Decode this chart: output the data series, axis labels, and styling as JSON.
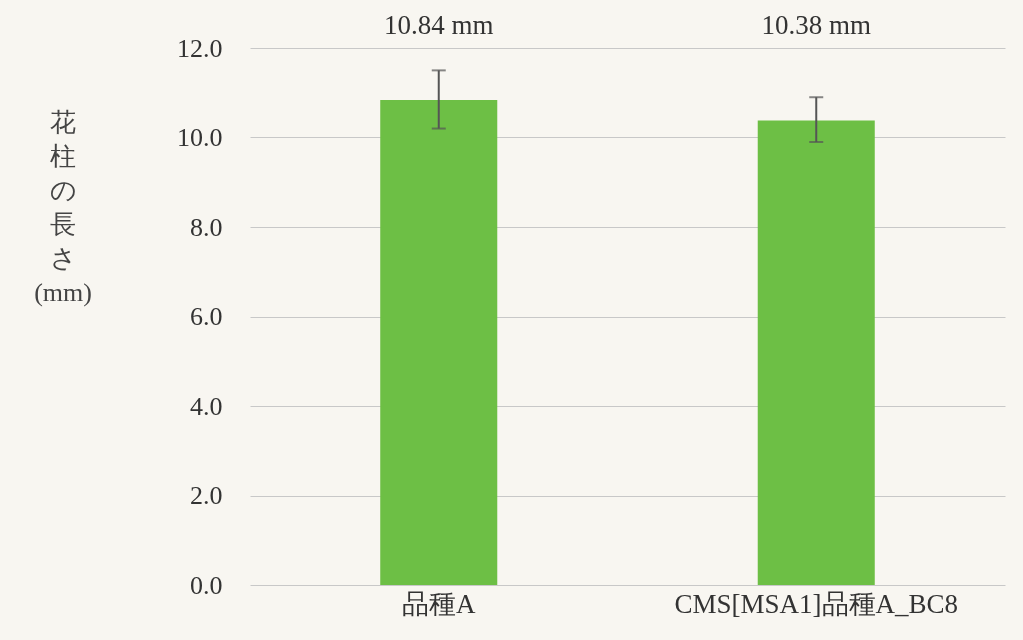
{
  "chart_data": {
    "type": "bar",
    "ylabel": "花柱の長さ (mm)",
    "categories": [
      "品種A",
      "CMS[MSA1]品種A_BC8"
    ],
    "values": [
      10.84,
      10.38
    ],
    "color": "#6dbf45",
    "errors": [
      [
        10.2,
        11.5
      ],
      [
        9.9,
        10.9
      ]
    ],
    "value_labels": [
      "10.84 mm",
      "10.38 mm"
    ],
    "ylim": [
      0,
      12
    ],
    "yticks": [
      {
        "value": 0,
        "label": "0.0"
      },
      {
        "value": 2,
        "label": "2.0"
      },
      {
        "value": 4,
        "label": "4.0"
      },
      {
        "value": 6,
        "label": "6.0"
      },
      {
        "value": 8,
        "label": "8.0"
      },
      {
        "value": 10,
        "label": "10.0"
      },
      {
        "value": 12,
        "label": "12.0"
      }
    ],
    "grid": true
  }
}
